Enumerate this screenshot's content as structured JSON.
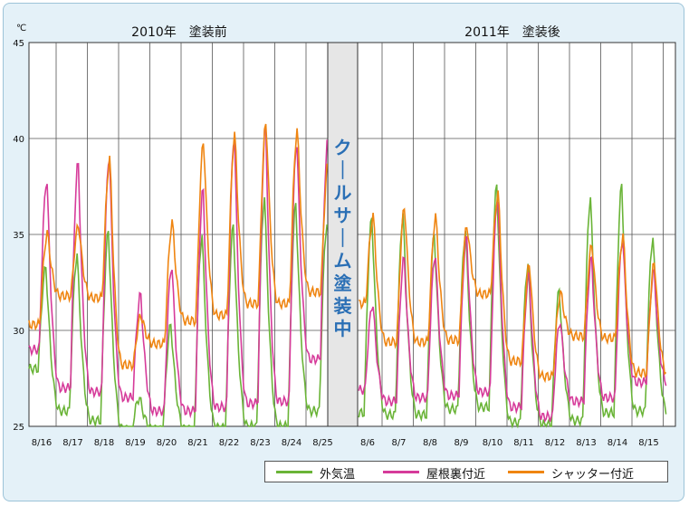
{
  "chart_data": [
    {
      "type": "line",
      "title": "2010年　塗装前",
      "unit": "℃",
      "ylim": [
        25,
        45
      ],
      "yticks": [
        "45",
        "40",
        "35",
        "30",
        "25"
      ],
      "xticks": [
        "8/16",
        "8/17",
        "8/18",
        "8/19",
        "8/20",
        "8/21",
        "8/22",
        "8/23",
        "8/24",
        "8/25"
      ],
      "grid": true,
      "daily_peaks": {
        "外気温": [
          33.3,
          34.0,
          35.2,
          26.5,
          30.3,
          35.0,
          35.5,
          37.0,
          36.6,
          35.6
        ],
        "屋根裏付近": [
          37.9,
          38.8,
          39.2,
          31.9,
          33.4,
          37.4,
          40.2,
          40.7,
          39.9,
          40.1
        ],
        "シャッター付近": [
          35.1,
          35.5,
          39.0,
          30.8,
          35.7,
          39.9,
          40.3,
          40.9,
          40.5,
          38.9
        ]
      },
      "daily_lows": {
        "外気温": [
          28.0,
          25.8,
          25.3,
          24.8,
          24.8,
          24.8,
          24.9,
          25.0,
          25.0,
          25.8
        ],
        "屋根裏付近": [
          29.0,
          27.0,
          26.8,
          26.5,
          25.8,
          25.8,
          26.0,
          26.2,
          26.3,
          28.5
        ],
        "シャッター付近": [
          30.3,
          31.8,
          31.7,
          28.2,
          29.3,
          30.5,
          30.8,
          31.4,
          31.4,
          32.0
        ]
      }
    },
    {
      "type": "line",
      "title": "2011年　塗装後",
      "unit": "℃",
      "ylim": [
        25,
        45
      ],
      "xticks": [
        "8/6",
        "8/7",
        "8/8",
        "8/9",
        "8/10",
        "8/11",
        "8/12",
        "8/13",
        "8/14",
        "8/15"
      ],
      "grid": true,
      "daily_peaks": {
        "外気温": [
          35.9,
          36.1,
          35.0,
          35.2,
          37.6,
          33.5,
          32.1,
          37.0,
          37.6,
          34.9
        ],
        "屋根裏付近": [
          31.4,
          33.8,
          34.0,
          34.9,
          37.0,
          33.0,
          30.5,
          33.8,
          34.8,
          33.1
        ],
        "シャッター付近": [
          36.0,
          36.5,
          36.0,
          35.5,
          37.2,
          33.5,
          32.0,
          34.5,
          35.0,
          33.6
        ]
      },
      "daily_lows": {
        "外気温": [
          25.7,
          25.6,
          25.6,
          25.9,
          26.0,
          25.2,
          25.1,
          25.3,
          25.7,
          25.8
        ],
        "屋根裏付近": [
          26.9,
          26.3,
          26.5,
          26.6,
          26.8,
          26.0,
          25.5,
          26.3,
          26.5,
          27.3
        ],
        "シャッター付近": [
          31.4,
          29.4,
          29.4,
          29.5,
          31.9,
          28.4,
          27.6,
          29.7,
          29.6,
          27.8
        ]
      }
    }
  ],
  "divider_label": "クールサーム塗装中",
  "legend": [
    {
      "label": "外気温",
      "color": "#6ab437"
    },
    {
      "label": "屋根裏付近",
      "color": "#d63b9a"
    },
    {
      "label": "シャッター付近",
      "color": "#ef8511"
    }
  ]
}
